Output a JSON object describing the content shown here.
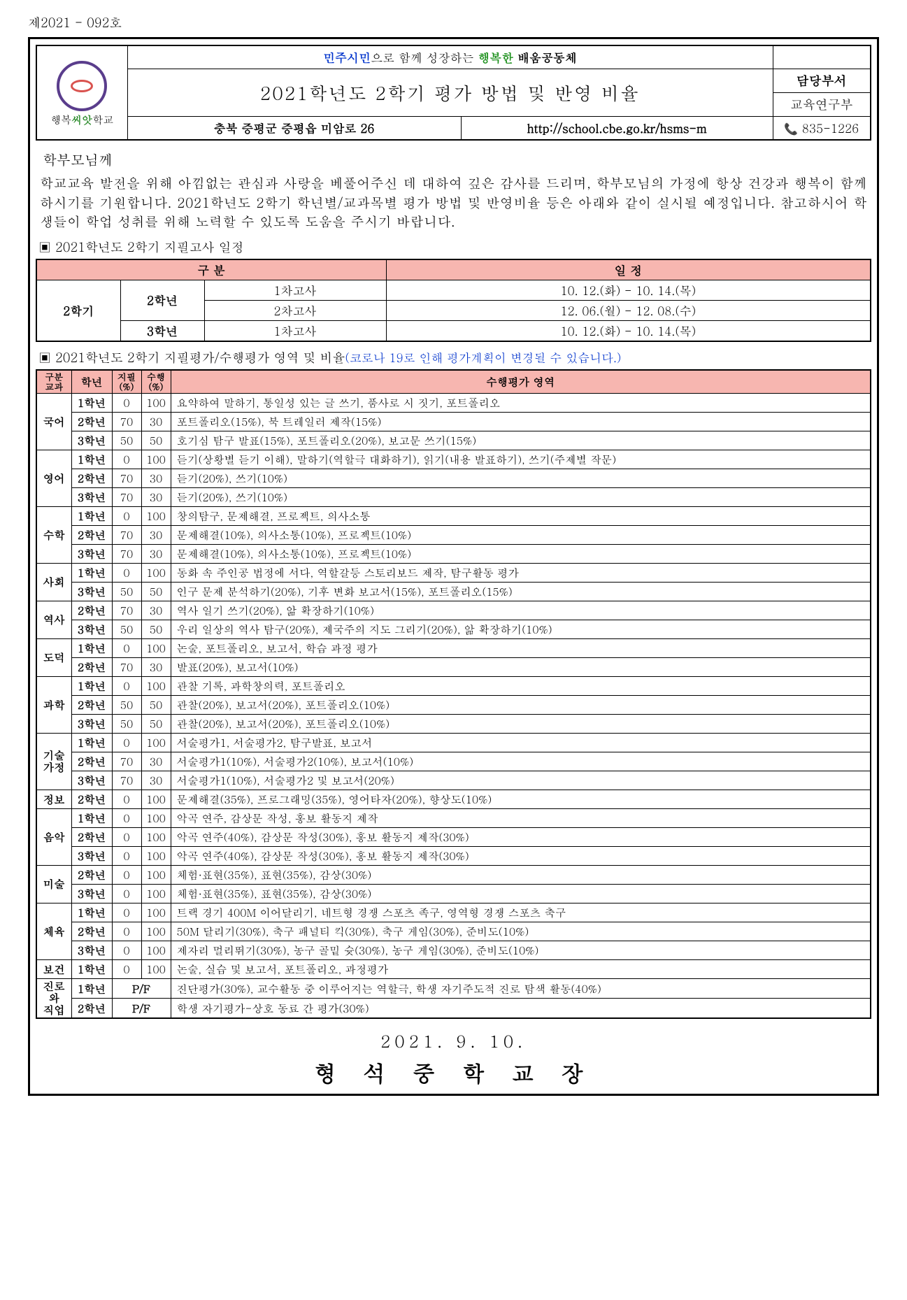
{
  "doc_number": "제2021 - 092호",
  "slogan": {
    "p1": "민주시민",
    "p2": "으로 함께 성장하는 ",
    "p3": "행복한 ",
    "p4": "배움공동체"
  },
  "title": "2021학년도 2학기 평가 방법 및 반영 비율",
  "dept_label": "담당부서",
  "dept_value": "교육연구부",
  "address": "충북 증평군 증평읍 미암로 26",
  "url": "http://school.cbe.go.kr/hsms-m",
  "phone": "835-1226",
  "logo_caption_1": "행복",
  "logo_caption_2": "씨앗",
  "logo_caption_3": "학교",
  "salutation": "학부모님께",
  "body_text": "학교교육 발전을 위해 아낌없는 관심과 사랑을 베풀어주신 데 대하여 깊은 감사를 드리며, 학부모님의 가정에 항상 건강과 행복이 함께하시기를 기원합니다. 2021학년도 2학기 학년별/교과목별 평가 방법 및 반영비율 등은 아래와 같이 실시될 예정입니다. 참고하시어 학생들이 학업 성취를 위해 노력할 수 있도록 도움을 주시기 바랍니다.",
  "section1_title": "▣ 2021학년도 2학기 지필고사 일정",
  "schedule": {
    "hdr_div": "구      분",
    "hdr_date": "일      정",
    "semester": "2학기",
    "rows": [
      {
        "grade": "2학년",
        "exam": "1차고사",
        "date": "10. 12.(화) - 10. 14.(목)"
      },
      {
        "grade": "",
        "exam": "2차고사",
        "date": "12. 06.(월) - 12. 08.(수)"
      },
      {
        "grade": "3학년",
        "exam": "1차고사",
        "date": "10. 12.(화) - 10. 14.(목)"
      }
    ]
  },
  "section2_title": "▣ 2021학년도 2학기 지필평가/수행평가 영역 및 비율",
  "section2_note": "(코로나 19로 인해 평가계획이 변경될 수 있습니다.)",
  "eval_headers": {
    "subj": "구분\n교과",
    "grade": "학년",
    "written": "지필\n(%)",
    "perf": "수행\n(%)",
    "area": "수행평가 영역"
  },
  "eval": [
    {
      "subj": "국어",
      "rows": [
        {
          "g": "1학년",
          "w": "0",
          "p": "100",
          "d": "요약하여 말하기, 통일성 있는 글 쓰기, 품사로 시 짓기, 포트폴리오"
        },
        {
          "g": "2학년",
          "w": "70",
          "p": "30",
          "d": "포트폴리오(15%), 북 트레일러 제작(15%)"
        },
        {
          "g": "3학년",
          "w": "50",
          "p": "50",
          "d": "호기심 탐구 발표(15%), 포트폴리오(20%), 보고문 쓰기(15%)"
        }
      ]
    },
    {
      "subj": "영어",
      "rows": [
        {
          "g": "1학년",
          "w": "0",
          "p": "100",
          "d": "듣기(상황별 듣기 이해), 말하기(역할극 대화하기), 읽기(내용 발표하기), 쓰기(주제별 작문)"
        },
        {
          "g": "2학년",
          "w": "70",
          "p": "30",
          "d": "듣기(20%), 쓰기(10%)"
        },
        {
          "g": "3학년",
          "w": "70",
          "p": "30",
          "d": "듣기(20%), 쓰기(10%)"
        }
      ]
    },
    {
      "subj": "수학",
      "rows": [
        {
          "g": "1학년",
          "w": "0",
          "p": "100",
          "d": "창의탐구, 문제해결, 프로젝트, 의사소통"
        },
        {
          "g": "2학년",
          "w": "70",
          "p": "30",
          "d": "문제해결(10%), 의사소통(10%), 프로젝트(10%)"
        },
        {
          "g": "3학년",
          "w": "70",
          "p": "30",
          "d": "문제해결(10%), 의사소통(10%), 프로젝트(10%)"
        }
      ]
    },
    {
      "subj": "사회",
      "rows": [
        {
          "g": "1학년",
          "w": "0",
          "p": "100",
          "d": "동화 속 주인공 법정에 서다, 역할갈등 스토리보드 제작, 탐구활동 평가"
        },
        {
          "g": "3학년",
          "w": "50",
          "p": "50",
          "d": "인구 문제 분석하기(20%), 기후 변화 보고서(15%), 포트폴리오(15%)"
        }
      ]
    },
    {
      "subj": "역사",
      "rows": [
        {
          "g": "2학년",
          "w": "70",
          "p": "30",
          "d": "역사 일기 쓰기(20%), 앎 확장하기(10%)"
        },
        {
          "g": "3학년",
          "w": "50",
          "p": "50",
          "d": "우리 일상의 역사 탐구(20%), 제국주의 지도 그리기(20%), 앎 확장하기(10%)"
        }
      ]
    },
    {
      "subj": "도덕",
      "rows": [
        {
          "g": "1학년",
          "w": "0",
          "p": "100",
          "d": "논술, 포트폴리오, 보고서, 학습 과정 평가"
        },
        {
          "g": "2학년",
          "w": "70",
          "p": "30",
          "d": "발표(20%), 보고서(10%)"
        }
      ]
    },
    {
      "subj": "과학",
      "rows": [
        {
          "g": "1학년",
          "w": "0",
          "p": "100",
          "d": "관찰 기록, 과학창의력, 포트폴리오"
        },
        {
          "g": "2학년",
          "w": "50",
          "p": "50",
          "d": "관찰(20%), 보고서(20%), 포트폴리오(10%)"
        },
        {
          "g": "3학년",
          "w": "50",
          "p": "50",
          "d": "관찰(20%), 보고서(20%), 포트폴리오(10%)"
        }
      ]
    },
    {
      "subj": "기술\n가정",
      "rows": [
        {
          "g": "1학년",
          "w": "0",
          "p": "100",
          "d": "서술평가1, 서술평가2, 탐구발표, 보고서"
        },
        {
          "g": "2학년",
          "w": "70",
          "p": "30",
          "d": "서술평가1(10%), 서술평가2(10%), 보고서(10%)"
        },
        {
          "g": "3학년",
          "w": "70",
          "p": "30",
          "d": "서술평가1(10%), 서술평가2 및 보고서(20%)"
        }
      ]
    },
    {
      "subj": "정보",
      "rows": [
        {
          "g": "2학년",
          "w": "0",
          "p": "100",
          "d": "문제해결(35%), 프로그래밍(35%), 영어타자(20%), 향상도(10%)"
        }
      ]
    },
    {
      "subj": "음악",
      "rows": [
        {
          "g": "1학년",
          "w": "0",
          "p": "100",
          "d": "악곡 연주, 감상문 작성, 홍보 활동지 제작"
        },
        {
          "g": "2학년",
          "w": "0",
          "p": "100",
          "d": "악곡 연주(40%), 감상문 작성(30%), 홍보 활동지 제작(30%)"
        },
        {
          "g": "3학년",
          "w": "0",
          "p": "100",
          "d": "악곡 연주(40%), 감상문 작성(30%), 홍보 활동지 제작(30%)"
        }
      ]
    },
    {
      "subj": "미술",
      "rows": [
        {
          "g": "2학년",
          "w": "0",
          "p": "100",
          "d": "체험·표현(35%), 표현(35%), 감상(30%)"
        },
        {
          "g": "3학년",
          "w": "0",
          "p": "100",
          "d": "체험·표현(35%), 표현(35%), 감상(30%)"
        }
      ]
    },
    {
      "subj": "체육",
      "rows": [
        {
          "g": "1학년",
          "w": "0",
          "p": "100",
          "d": "트랙 경기 400M 이어달리기, 네트형 경쟁 스포츠 족구, 영역형 경쟁 스포츠 축구"
        },
        {
          "g": "2학년",
          "w": "0",
          "p": "100",
          "d": "50M 달리기(30%), 축구 패널티 킥(30%), 축구 게임(30%), 준비도(10%)"
        },
        {
          "g": "3학년",
          "w": "0",
          "p": "100",
          "d": "제자리 멀리뛰기(30%), 농구 골밑 슛(30%), 농구 게임(30%), 준비도(10%)"
        }
      ]
    },
    {
      "subj": "보건",
      "rows": [
        {
          "g": "1학년",
          "w": "0",
          "p": "100",
          "d": "논술, 실습 및 보고서, 포트폴리오, 과정평가"
        }
      ]
    },
    {
      "subj": "진로와\n직업",
      "rows": [
        {
          "g": "1학년",
          "pf": "P/F",
          "d": "진단평가(30%), 교수활동 중 이루어지는 역할극, 학생 자기주도적 진로 탐색 활동(40%)"
        },
        {
          "g": "2학년",
          "pf": "P/F",
          "d": "학생 자기평가-상호 동료 간 평가(30%)"
        }
      ]
    }
  ],
  "date_line": "2021.  9.  10.",
  "sign_line": "형 석 중 학 교 장",
  "colors": {
    "pink": "#f7b6b0",
    "blue": "#0033cc",
    "green": "#1a8f1a"
  }
}
